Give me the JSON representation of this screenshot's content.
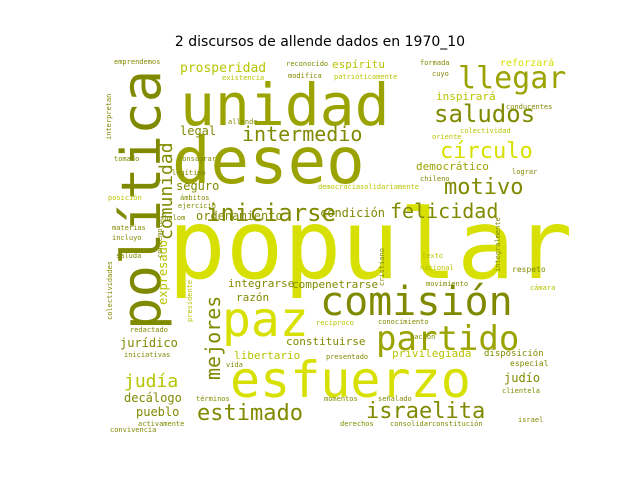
{
  "title": "2 discursos de allende dados en 1970_10",
  "palette": [
    "#d7e000",
    "#b8c400",
    "#9aa300",
    "#808a00"
  ],
  "words": [
    {
      "text": "popular",
      "size": 96,
      "color": "#d7e000",
      "weight": 1.0
    },
    {
      "text": "deseo",
      "size": 64,
      "color": "#9aa300",
      "weight": 0.8
    },
    {
      "text": "unidad",
      "size": 58,
      "color": "#9aa300",
      "weight": 0.75
    },
    {
      "text": "política",
      "size": 54,
      "color": "#808a00",
      "weight": 0.72
    },
    {
      "text": "esfuerzo",
      "size": 50,
      "color": "#d7e000",
      "weight": 0.68
    },
    {
      "text": "paz",
      "size": 48,
      "color": "#d7e000",
      "weight": 0.65
    },
    {
      "text": "comisión",
      "size": 40,
      "color": "#808a00",
      "weight": 0.58
    },
    {
      "text": "partido",
      "size": 34,
      "color": "#9aa300",
      "weight": 0.5
    },
    {
      "text": "llegar",
      "size": 30,
      "color": "#9aa300",
      "weight": 0.46
    },
    {
      "text": "iniciarse",
      "size": 24,
      "color": "#808a00",
      "weight": 0.4
    },
    {
      "text": "saludos",
      "size": 24,
      "color": "#808a00",
      "weight": 0.4
    },
    {
      "text": "círculo",
      "size": 22,
      "color": "#d7e000",
      "weight": 0.38
    },
    {
      "text": "motivo",
      "size": 22,
      "color": "#808a00",
      "weight": 0.38
    },
    {
      "text": "estimado",
      "size": 22,
      "color": "#808a00",
      "weight": 0.38
    },
    {
      "text": "israelita",
      "size": 22,
      "color": "#808a00",
      "weight": 0.38
    },
    {
      "text": "intermedio",
      "size": 20,
      "color": "#808a00",
      "weight": 0.34
    },
    {
      "text": "felicidad",
      "size": 20,
      "color": "#808a00",
      "weight": 0.34
    },
    {
      "text": "mejores",
      "size": 20,
      "color": "#808a00",
      "weight": 0.34
    },
    {
      "text": "comunidad",
      "size": 18,
      "color": "#808a00",
      "weight": 0.3
    },
    {
      "text": "judía",
      "size": 18,
      "color": "#b8c400",
      "weight": 0.3
    },
    {
      "text": "prosperidad",
      "size": 13,
      "color": "#b8c400",
      "weight": 0.22
    },
    {
      "text": "legal",
      "size": 12,
      "color": "#808a00",
      "weight": 0.2
    },
    {
      "text": "seguro",
      "size": 12,
      "color": "#808a00",
      "weight": 0.2
    },
    {
      "text": "ordenamiento",
      "size": 12,
      "color": "#808a00",
      "weight": 0.2
    },
    {
      "text": "condición",
      "size": 12,
      "color": "#808a00",
      "weight": 0.2
    },
    {
      "text": "democrático",
      "size": 11,
      "color": "#9aa300",
      "weight": 0.18
    },
    {
      "text": "inspirará",
      "size": 11,
      "color": "#b8c400",
      "weight": 0.18
    },
    {
      "text": "espíritu",
      "size": 11,
      "color": "#b8c400",
      "weight": 0.18
    },
    {
      "text": "reforzará",
      "size": 10,
      "color": "#d7e000",
      "weight": 0.16
    },
    {
      "text": "expresado",
      "size": 12,
      "color": "#b8c400",
      "weight": 0.2
    },
    {
      "text": "integrarse",
      "size": 11,
      "color": "#808a00",
      "weight": 0.18
    },
    {
      "text": "compenetrarse",
      "size": 11,
      "color": "#808a00",
      "weight": 0.18
    },
    {
      "text": "razón",
      "size": 11,
      "color": "#808a00",
      "weight": 0.18
    },
    {
      "text": "constituirse",
      "size": 11,
      "color": "#808a00",
      "weight": 0.18
    },
    {
      "text": "jurídico",
      "size": 12,
      "color": "#808a00",
      "weight": 0.2
    },
    {
      "text": "libertario",
      "size": 11,
      "color": "#b8c400",
      "weight": 0.18
    },
    {
      "text": "privilegiada",
      "size": 11,
      "color": "#b8c400",
      "weight": 0.18
    },
    {
      "text": "judío",
      "size": 12,
      "color": "#808a00",
      "weight": 0.2
    },
    {
      "text": "decálogo",
      "size": 12,
      "color": "#808a00",
      "weight": 0.2
    },
    {
      "text": "pueblo",
      "size": 12,
      "color": "#808a00",
      "weight": 0.2
    },
    {
      "text": "disposición",
      "size": 9,
      "color": "#808a00",
      "weight": 0.14
    },
    {
      "text": "especial",
      "size": 8,
      "color": "#808a00",
      "weight": 0.12
    },
    {
      "text": "emprendemos",
      "size": 7,
      "color": "#808a00",
      "weight": 0.1
    },
    {
      "text": "reconocido",
      "size": 7,
      "color": "#808a00",
      "weight": 0.1
    },
    {
      "text": "formada",
      "size": 7,
      "color": "#808a00",
      "weight": 0.1
    },
    {
      "text": "cuyo",
      "size": 7,
      "color": "#808a00",
      "weight": 0.1
    },
    {
      "text": "modifica",
      "size": 7,
      "color": "#808a00",
      "weight": 0.1
    },
    {
      "text": "patrióticamente",
      "size": 7,
      "color": "#b8c400",
      "weight": 0.1
    },
    {
      "text": "existencia",
      "size": 7,
      "color": "#b8c400",
      "weight": 0.1
    },
    {
      "text": "conducentes",
      "size": 7,
      "color": "#808a00",
      "weight": 0.1
    },
    {
      "text": "interpretan",
      "size": 7,
      "color": "#808a00",
      "weight": 0.1
    },
    {
      "text": "colectividad",
      "size": 7,
      "color": "#b8c400",
      "weight": 0.1
    },
    {
      "text": "oriente",
      "size": 7,
      "color": "#b8c400",
      "weight": 0.1
    },
    {
      "text": "allende",
      "size": 7,
      "color": "#808a00",
      "weight": 0.1
    },
    {
      "text": "consagrar",
      "size": 7,
      "color": "#808a00",
      "weight": 0.1
    },
    {
      "text": "legítimo",
      "size": 7,
      "color": "#808a00",
      "weight": 0.1
    },
    {
      "text": "tomado",
      "size": 7,
      "color": "#808a00",
      "weight": 0.1
    },
    {
      "text": "chileno",
      "size": 7,
      "color": "#808a00",
      "weight": 0.1
    },
    {
      "text": "lograr",
      "size": 7,
      "color": "#808a00",
      "weight": 0.1
    },
    {
      "text": "solidariamente",
      "size": 7,
      "color": "#b8c400",
      "weight": 0.1
    },
    {
      "text": "democracia",
      "size": 7,
      "color": "#b8c400",
      "weight": 0.1
    },
    {
      "text": "posición",
      "size": 7,
      "color": "#b8c400",
      "weight": 0.1
    },
    {
      "text": "ámbitos",
      "size": 7,
      "color": "#808a00",
      "weight": 0.1
    },
    {
      "text": "ejercicio",
      "size": 7,
      "color": "#808a00",
      "weight": 0.1
    },
    {
      "text": "shalom",
      "size": 7,
      "color": "#808a00",
      "weight": 0.1
    },
    {
      "text": "materias",
      "size": 7,
      "color": "#808a00",
      "weight": 0.1
    },
    {
      "text": "incluyo",
      "size": 7,
      "color": "#808a00",
      "weight": 0.1
    },
    {
      "text": "contempla",
      "size": 7,
      "color": "#808a00",
      "weight": 0.1
    },
    {
      "text": "saluda",
      "size": 7,
      "color": "#808a00",
      "weight": 0.1
    },
    {
      "text": "cristiano",
      "size": 7,
      "color": "#808a00",
      "weight": 0.1
    },
    {
      "text": "nacional",
      "size": 7,
      "color": "#b8c400",
      "weight": 0.1
    },
    {
      "text": "texto",
      "size": 7,
      "color": "#b8c400",
      "weight": 0.1
    },
    {
      "text": "integralmente",
      "size": 7,
      "color": "#808a00",
      "weight": 0.1
    },
    {
      "text": "respeto",
      "size": 8,
      "color": "#808a00",
      "weight": 0.12
    },
    {
      "text": "colectividades",
      "size": 7,
      "color": "#808a00",
      "weight": 0.1
    },
    {
      "text": "presidente",
      "size": 7,
      "color": "#b8c400",
      "weight": 0.1
    },
    {
      "text": "movimiento",
      "size": 7,
      "color": "#808a00",
      "weight": 0.1
    },
    {
      "text": "recíproco",
      "size": 7,
      "color": "#b8c400",
      "weight": 0.1
    },
    {
      "text": "conocimiento",
      "size": 7,
      "color": "#808a00",
      "weight": 0.1
    },
    {
      "text": "nación",
      "size": 7,
      "color": "#808a00",
      "weight": 0.1
    },
    {
      "text": "redactado",
      "size": 7,
      "color": "#808a00",
      "weight": 0.1
    },
    {
      "text": "iniciativas",
      "size": 7,
      "color": "#808a00",
      "weight": 0.1
    },
    {
      "text": "presentado",
      "size": 7,
      "color": "#808a00",
      "weight": 0.1
    },
    {
      "text": "vida",
      "size": 7,
      "color": "#808a00",
      "weight": 0.1
    },
    {
      "text": "convivencia",
      "size": 7,
      "color": "#808a00",
      "weight": 0.1
    },
    {
      "text": "términos",
      "size": 7,
      "color": "#808a00",
      "weight": 0.1
    },
    {
      "text": "momentos",
      "size": 7,
      "color": "#808a00",
      "weight": 0.1
    },
    {
      "text": "señalado",
      "size": 7,
      "color": "#808a00",
      "weight": 0.1
    },
    {
      "text": "clientela",
      "size": 7,
      "color": "#808a00",
      "weight": 0.1
    },
    {
      "text": "activamente",
      "size": 7,
      "color": "#808a00",
      "weight": 0.1
    },
    {
      "text": "derechos",
      "size": 7,
      "color": "#808a00",
      "weight": 0.1
    },
    {
      "text": "consolidar",
      "size": 7,
      "color": "#808a00",
      "weight": 0.1
    },
    {
      "text": "constitución",
      "size": 7,
      "color": "#808a00",
      "weight": 0.1
    },
    {
      "text": "israel",
      "size": 7,
      "color": "#808a00",
      "weight": 0.1
    },
    {
      "text": "cámara",
      "size": 7,
      "color": "#b8c400",
      "weight": 0.1
    }
  ]
}
